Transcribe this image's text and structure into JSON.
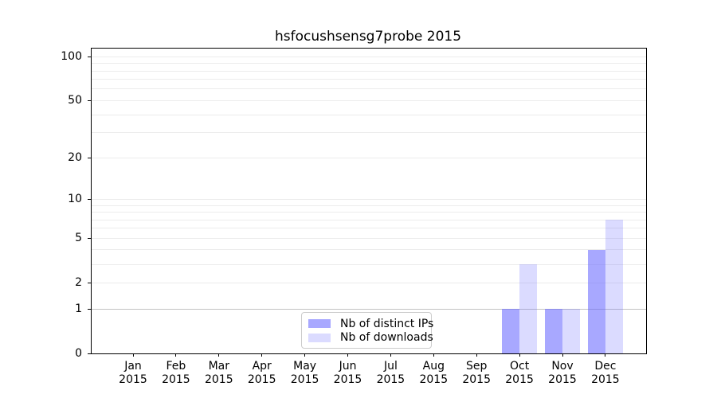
{
  "chart_data": {
    "type": "bar",
    "title": "hsfocushsensg7probe 2015",
    "x_year": "2015",
    "months": [
      "Jan",
      "Feb",
      "Mar",
      "Apr",
      "May",
      "Jun",
      "Jul",
      "Aug",
      "Sep",
      "Oct",
      "Nov",
      "Dec"
    ],
    "categories": [
      "Jan 2015",
      "Feb 2015",
      "Mar 2015",
      "Apr 2015",
      "May 2015",
      "Jun 2015",
      "Jul 2015",
      "Aug 2015",
      "Sep 2015",
      "Oct 2015",
      "Nov 2015",
      "Dec 2015"
    ],
    "series": [
      {
        "name": "Nb of distinct IPs",
        "values": [
          0,
          0,
          0,
          0,
          0,
          0,
          0,
          0,
          0,
          1,
          1,
          4
        ],
        "color_hex": "#a8a8f8",
        "color_rgba": "rgba(102,102,255,0.57)"
      },
      {
        "name": "Nb of downloads",
        "values": [
          0,
          0,
          0,
          0,
          0,
          0,
          0,
          0,
          0,
          3,
          1,
          7
        ],
        "color_hex": "#dbdbf9",
        "color_rgba": "rgba(102,102,255,0.235)"
      }
    ],
    "y_scale": "log1p",
    "y_ticks": [
      0,
      1,
      2,
      5,
      10,
      20,
      50,
      100
    ],
    "y_grid_values": [
      1,
      2,
      3,
      4,
      5,
      6,
      7,
      8,
      9,
      10,
      20,
      30,
      40,
      50,
      60,
      70,
      80,
      90,
      100
    ],
    "ylim": [
      0,
      115
    ],
    "grid": true,
    "legend_position": "lower center",
    "colors": {
      "grid_minor": "#ececec",
      "grid_unit_line": "#c3c3c3",
      "axis": "#000000",
      "legend_border": "#cccccc",
      "background": "#ffffff"
    }
  }
}
